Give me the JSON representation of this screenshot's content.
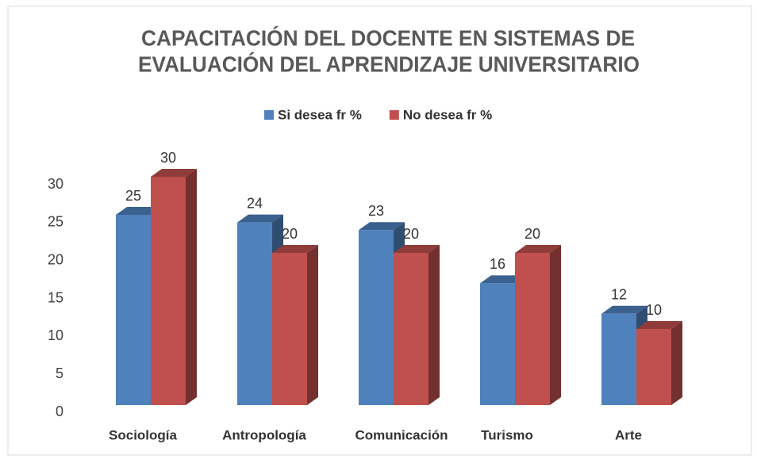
{
  "chart_data": {
    "type": "bar3d",
    "title": [
      "CAPACITACIÓN DEL DOCENTE EN SISTEMAS DE",
      "EVALUACIÓN DEL APRENDIZAJE UNIVERSITARIO"
    ],
    "categories": [
      "Sociología",
      "Antropología",
      "Comunicación",
      "Turismo",
      "Arte"
    ],
    "series": [
      {
        "name": "Si desea fr %",
        "color": "#4f81bd",
        "values": [
          25,
          24,
          23,
          16,
          12
        ]
      },
      {
        "name": "No desea fr %",
        "color": "#c0504d",
        "values": [
          30,
          20,
          20,
          20,
          10
        ]
      }
    ],
    "ylim": [
      0,
      30
    ],
    "yticks": [
      0,
      5,
      10,
      15,
      20,
      25,
      30
    ],
    "legend": "top"
  }
}
